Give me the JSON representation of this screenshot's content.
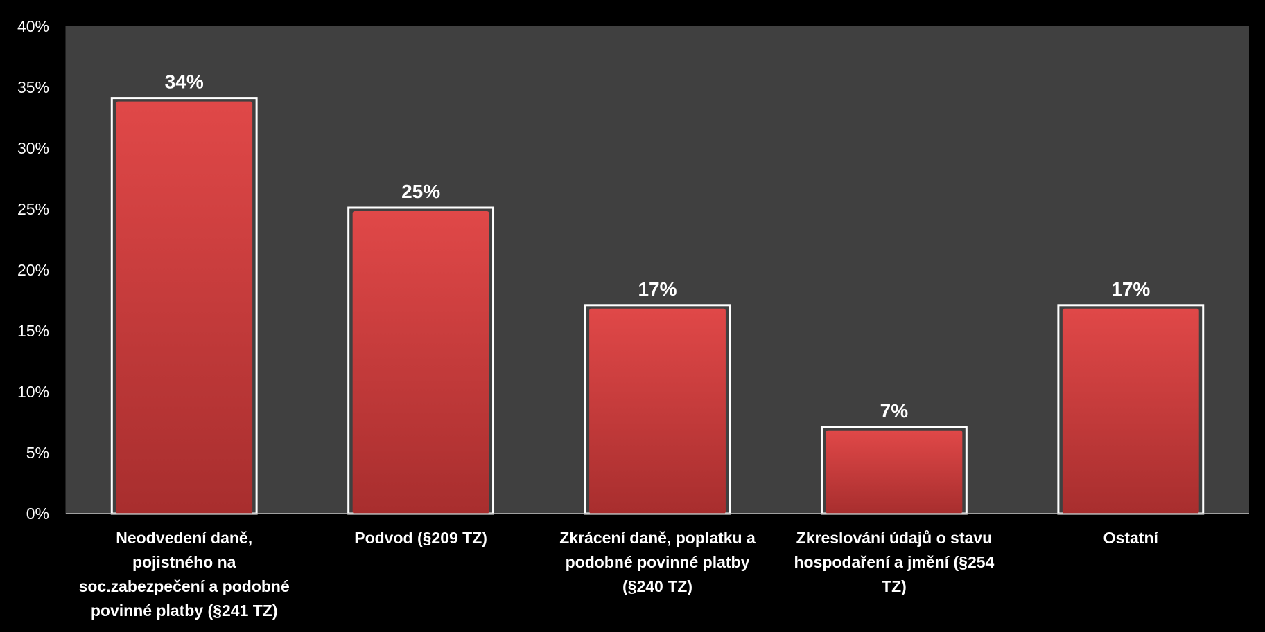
{
  "chart_data": {
    "type": "bar",
    "title": "",
    "xlabel": "",
    "ylabel": "",
    "categories": [
      "Neodvedení daně, pojistného na soc.zabezpečení a podobné povinné platby (§241 TZ)",
      "Podvod (§209 TZ)",
      "Zkrácení daně, poplatku a podobné povinné platby (§240 TZ)",
      "Zkreslování údajů o stavu hospodaření a jmění (§254 TZ)",
      "Ostatní"
    ],
    "category_lines": [
      [
        "Neodvedení daně,",
        "pojistného na",
        "soc.zabezpečení a podobné",
        "povinné platby (§241 TZ)"
      ],
      [
        "Podvod (§209 TZ)"
      ],
      [
        "Zkrácení daně, poplatku a",
        "podobné povinné platby",
        "(§240 TZ)"
      ],
      [
        "Zkreslování údajů o stavu",
        "hospodaření a jmění (§254",
        "TZ)"
      ],
      [
        "Ostatní"
      ]
    ],
    "values": [
      34,
      25,
      17,
      7,
      17
    ],
    "data_labels": [
      "34%",
      "25%",
      "17%",
      "7%",
      "17%"
    ],
    "ylim": [
      0,
      40
    ],
    "yticks": [
      0,
      5,
      10,
      15,
      20,
      25,
      30,
      35,
      40
    ],
    "ytick_labels": [
      "0%",
      "5%",
      "10%",
      "15%",
      "20%",
      "25%",
      "30%",
      "35%",
      "40%"
    ],
    "grid": false,
    "legend": "none"
  },
  "colors": {
    "page_background": "#000000",
    "plot_background": "#404040",
    "bar_fill_top": "#e04848",
    "bar_fill_bottom": "#a82e2e",
    "bar_outline": "#ffffff",
    "text": "#ffffff",
    "axis": "#bfbfbf"
  }
}
